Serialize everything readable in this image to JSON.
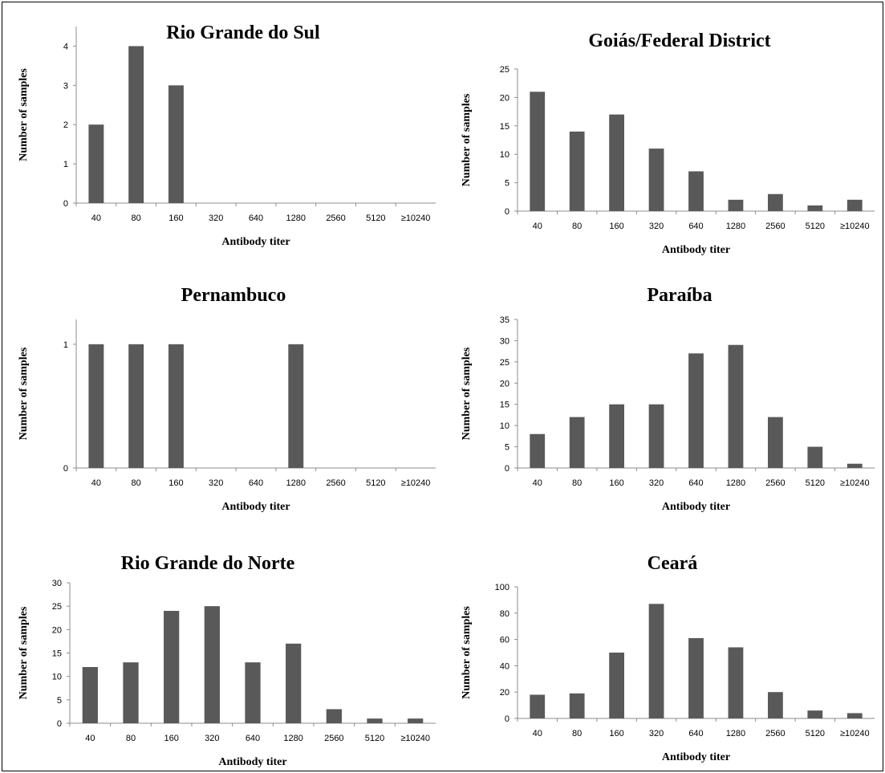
{
  "chart_data": [
    {
      "type": "bar",
      "title": "Rio Grande do Sul",
      "xlabel": "Antibody titer",
      "ylabel": "Number of samples",
      "categories": [
        "40",
        "80",
        "160",
        "320",
        "640",
        "1280",
        "2560",
        "5120",
        "≥10240"
      ],
      "values": [
        2,
        4,
        3,
        0,
        0,
        0,
        0,
        0,
        0
      ],
      "ylim": [
        0,
        4.5
      ],
      "yticks": [
        0,
        1,
        2,
        3,
        4
      ],
      "grid": false,
      "bar_color": "#595959"
    },
    {
      "type": "bar",
      "title": "Goiás/Federal District",
      "xlabel": "Antibody titer",
      "ylabel": "Number of samples",
      "categories": [
        "40",
        "80",
        "160",
        "320",
        "640",
        "1280",
        "2560",
        "5120",
        "≥10240"
      ],
      "values": [
        21,
        14,
        17,
        11,
        7,
        2,
        3,
        1,
        2
      ],
      "ylim": [
        0,
        25
      ],
      "yticks": [
        0,
        5,
        10,
        15,
        20,
        25
      ],
      "grid": false,
      "bar_color": "#595959"
    },
    {
      "type": "bar",
      "title": "Pernambuco",
      "xlabel": "Antibody titer",
      "ylabel": "Number of samples",
      "categories": [
        "40",
        "80",
        "160",
        "320",
        "640",
        "1280",
        "2560",
        "5120",
        "≥10240"
      ],
      "values": [
        1,
        1,
        1,
        0,
        0,
        1,
        0,
        0,
        0
      ],
      "ylim": [
        0,
        1.2
      ],
      "yticks": [
        0,
        1
      ],
      "grid": false,
      "bar_color": "#595959"
    },
    {
      "type": "bar",
      "title": "Paraíba",
      "xlabel": "Antibody titer",
      "ylabel": "Number of samples",
      "categories": [
        "40",
        "80",
        "160",
        "320",
        "640",
        "1280",
        "2560",
        "5120",
        "≥10240"
      ],
      "values": [
        8,
        12,
        15,
        15,
        27,
        29,
        12,
        5,
        1
      ],
      "ylim": [
        0,
        35
      ],
      "yticks": [
        0,
        5,
        10,
        15,
        20,
        25,
        30,
        35
      ],
      "grid": false,
      "bar_color": "#595959"
    },
    {
      "type": "bar",
      "title": "Rio Grande do Norte",
      "xlabel": "Antibody titer",
      "ylabel": "Number of samples",
      "categories": [
        "40",
        "80",
        "160",
        "320",
        "640",
        "1280",
        "2560",
        "5120",
        "≥10240"
      ],
      "values": [
        12,
        13,
        24,
        25,
        13,
        17,
        3,
        1,
        1
      ],
      "ylim": [
        0,
        30
      ],
      "yticks": [
        0,
        5,
        10,
        15,
        20,
        25,
        30
      ],
      "grid": false,
      "bar_color": "#595959"
    },
    {
      "type": "bar",
      "title": "Ceará",
      "xlabel": "Antibody titer",
      "ylabel": "Number of samples",
      "categories": [
        "40",
        "80",
        "160",
        "320",
        "640",
        "1280",
        "2560",
        "5120",
        "≥10240"
      ],
      "values": [
        18,
        19,
        50,
        87,
        61,
        54,
        20,
        6,
        4
      ],
      "ylim": [
        0,
        100
      ],
      "yticks": [
        0,
        20,
        40,
        60,
        80,
        100
      ],
      "grid": false,
      "bar_color": "#595959"
    }
  ]
}
